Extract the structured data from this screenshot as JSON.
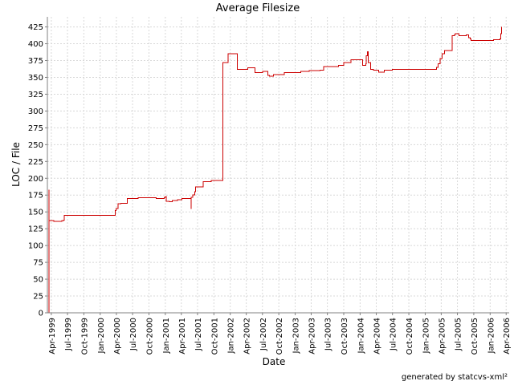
{
  "chart_data": {
    "type": "line",
    "title": "Average Filesize",
    "xlabel": "Date",
    "ylabel": "LOC / File",
    "ylim": [
      0,
      440
    ],
    "yticks": [
      0,
      25,
      50,
      75,
      100,
      125,
      150,
      175,
      200,
      225,
      250,
      275,
      300,
      325,
      350,
      375,
      400,
      425
    ],
    "xlim": [
      "1999-03-10",
      "2006-04-18"
    ],
    "xticks": [
      {
        "date": "1999-04-01",
        "label": "Apr-1999"
      },
      {
        "date": "1999-07-01",
        "label": "Jul-1999"
      },
      {
        "date": "1999-10-01",
        "label": "Oct-1999"
      },
      {
        "date": "2000-01-01",
        "label": "Jan-2000"
      },
      {
        "date": "2000-04-01",
        "label": "Apr-2000"
      },
      {
        "date": "2000-07-01",
        "label": "Jul-2000"
      },
      {
        "date": "2000-10-01",
        "label": "Oct-2000"
      },
      {
        "date": "2001-01-01",
        "label": "Jan-2001"
      },
      {
        "date": "2001-04-01",
        "label": "Apr-2001"
      },
      {
        "date": "2001-07-01",
        "label": "Jul-2001"
      },
      {
        "date": "2001-10-01",
        "label": "Oct-2001"
      },
      {
        "date": "2002-01-01",
        "label": "Jan-2002"
      },
      {
        "date": "2002-04-01",
        "label": "Apr-2002"
      },
      {
        "date": "2002-07-01",
        "label": "Jul-2002"
      },
      {
        "date": "2002-10-01",
        "label": "Oct-2002"
      },
      {
        "date": "2003-01-01",
        "label": "Jan-2003"
      },
      {
        "date": "2003-04-01",
        "label": "Apr-2003"
      },
      {
        "date": "2003-07-01",
        "label": "Jul-2003"
      },
      {
        "date": "2003-10-01",
        "label": "Oct-2003"
      },
      {
        "date": "2004-01-01",
        "label": "Jan-2004"
      },
      {
        "date": "2004-04-01",
        "label": "Apr-2004"
      },
      {
        "date": "2004-07-01",
        "label": "Jul-2004"
      },
      {
        "date": "2004-10-01",
        "label": "Oct-2004"
      },
      {
        "date": "2005-01-01",
        "label": "Jan-2005"
      },
      {
        "date": "2005-04-01",
        "label": "Apr-2005"
      },
      {
        "date": "2005-07-01",
        "label": "Jul-2005"
      },
      {
        "date": "2005-10-01",
        "label": "Oct-2005"
      },
      {
        "date": "2006-01-01",
        "label": "Jan-2006"
      },
      {
        "date": "2006-04-01",
        "label": "Apr-2006"
      }
    ],
    "grid": true,
    "step": true,
    "line_color": "#cc0000",
    "series": [
      {
        "x": [
          "1999-03-19",
          "1999-03-19",
          "1999-03-22",
          "1999-04-15",
          "1999-05-30",
          "1999-06-10",
          "1999-06-13",
          "1999-12-15",
          "2000-03-15",
          "2000-03-25",
          "2000-03-30",
          "2000-04-10",
          "2000-04-25",
          "2000-06-01",
          "2000-07-15",
          "2000-08-01",
          "2000-09-01",
          "2000-11-10",
          "2000-12-01",
          "2000-12-25",
          "2001-01-05",
          "2001-01-07",
          "2001-01-25",
          "2001-02-10",
          "2001-03-01",
          "2001-03-10",
          "2001-04-05",
          "2001-05-10",
          "2001-05-20",
          "2001-05-25",
          "2001-05-27",
          "2001-06-05",
          "2001-06-15",
          "2001-06-20",
          "2001-07-05",
          "2001-08-01",
          "2001-09-15",
          "2001-10-20",
          "2001-11-20",
          "2001-12-20",
          "2002-01-10",
          "2002-02-10",
          "2002-04-10",
          "2002-04-20",
          "2002-05-20",
          "2002-06-01",
          "2002-07-01",
          "2002-07-15",
          "2002-08-01",
          "2002-08-10",
          "2002-09-01",
          "2002-11-01",
          "2002-12-15",
          "2003-02-01",
          "2003-03-20",
          "2003-05-01",
          "2003-05-20",
          "2003-06-01",
          "2003-06-10",
          "2003-09-01",
          "2003-10-01",
          "2003-10-10",
          "2003-11-01",
          "2003-11-05",
          "2003-11-10",
          "2004-01-15",
          "2004-02-01",
          "2004-02-02",
          "2004-02-05",
          "2004-02-10",
          "2004-02-15",
          "2004-03-01",
          "2004-03-15",
          "2004-04-15",
          "2004-05-01",
          "2004-05-15",
          "2004-06-15",
          "2004-07-01",
          "2005-01-15",
          "2005-02-01",
          "2005-02-25",
          "2005-03-05",
          "2005-03-15",
          "2005-03-25",
          "2005-04-05",
          "2005-04-20",
          "2005-05-20",
          "2005-06-01",
          "2005-06-15",
          "2005-06-20",
          "2005-07-10",
          "2005-08-20",
          "2005-09-01",
          "2005-09-10",
          "2005-09-15",
          "2005-09-20",
          "2005-12-01",
          "2006-01-20",
          "2006-02-25",
          "2006-03-01",
          "2006-03-05"
        ],
        "y": [
          183,
          137,
          137,
          136,
          137,
          138,
          145,
          145,
          145,
          152,
          155,
          162,
          163,
          170,
          170,
          171,
          171,
          170,
          170,
          172,
          173,
          166,
          165,
          167,
          167,
          168,
          170,
          170,
          170,
          155,
          172,
          175,
          180,
          187,
          187,
          195,
          197,
          197,
          372,
          385,
          385,
          362,
          364,
          364,
          357,
          357,
          359,
          359,
          353,
          352,
          354,
          357,
          357,
          359,
          360,
          360,
          361,
          361,
          366,
          368,
          372,
          372,
          372,
          372,
          376,
          368,
          370,
          370,
          382,
          388,
          372,
          362,
          361,
          358,
          358,
          361,
          361,
          362,
          362,
          362,
          362,
          365,
          370,
          378,
          385,
          390,
          390,
          412,
          414,
          415,
          412,
          413,
          409,
          407,
          405,
          405,
          405,
          406,
          407,
          415,
          425
        ]
      }
    ],
    "credit": "generated by statcvs-xml²"
  }
}
